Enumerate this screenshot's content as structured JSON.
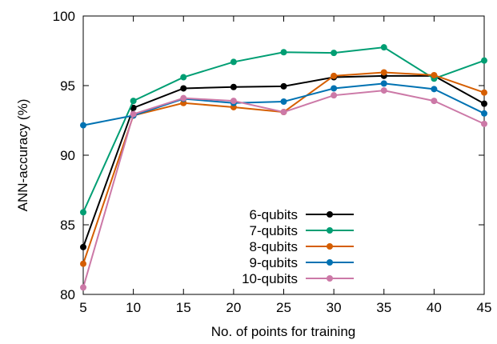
{
  "chart_data": {
    "type": "line",
    "title": "",
    "xlabel": "No. of points for training",
    "ylabel": "ANN-accuracy (%)",
    "x": [
      5,
      10,
      15,
      20,
      25,
      30,
      35,
      40,
      45
    ],
    "xticks": [
      "5",
      "10",
      "15",
      "20",
      "25",
      "30",
      "35",
      "40",
      "45"
    ],
    "yticks": [
      "80",
      "85",
      "90",
      "95",
      "100"
    ],
    "xlim": [
      5,
      45
    ],
    "ylim": [
      80,
      100
    ],
    "grid": false,
    "legend_position": "bottom-center",
    "series": [
      {
        "name": "6-qubits",
        "color": "#000000",
        "values": [
          83.4,
          93.4,
          94.8,
          94.9,
          94.95,
          95.6,
          95.7,
          95.7,
          93.7
        ]
      },
      {
        "name": "7-qubits",
        "color": "#009e73",
        "values": [
          85.9,
          93.9,
          95.6,
          96.7,
          97.4,
          97.35,
          97.75,
          95.5,
          96.8
        ]
      },
      {
        "name": "8-qubits",
        "color": "#d55e00",
        "values": [
          82.2,
          92.85,
          93.75,
          93.45,
          93.1,
          95.7,
          95.95,
          95.75,
          94.5
        ]
      },
      {
        "name": "9-qubits",
        "color": "#0072b2",
        "values": [
          92.15,
          92.85,
          94.05,
          93.75,
          93.85,
          94.8,
          95.15,
          94.75,
          93.0
        ]
      },
      {
        "name": "10-qubits",
        "color": "#cc79a7",
        "values": [
          80.5,
          92.95,
          94.1,
          93.9,
          93.1,
          94.3,
          94.65,
          93.9,
          92.25
        ]
      }
    ]
  }
}
